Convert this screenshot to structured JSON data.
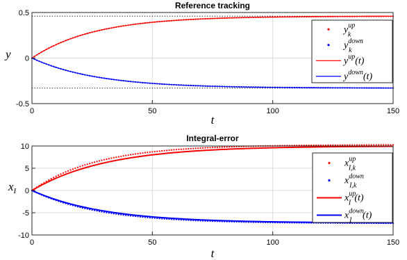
{
  "chart_data": [
    {
      "type": "line",
      "title": "Reference tracking",
      "xlabel": "t",
      "ylabel": "y",
      "xlim": [
        0,
        150
      ],
      "ylim": [
        -0.5,
        0.5
      ],
      "xticks": [
        0,
        50,
        100,
        150
      ],
      "yticks": [
        -0.5,
        0,
        0.5
      ],
      "ytick_labels": [
        "-0.5",
        "0",
        "0.5"
      ],
      "grid": true,
      "legend_position": "top-right",
      "references": [
        {
          "value": 0.46,
          "style": "dotted",
          "color": "#000000"
        },
        {
          "value": -0.33,
          "style": "dotted",
          "color": "#000000"
        }
      ],
      "series": [
        {
          "label": "y_k^{up}",
          "label_base": "y",
          "label_sup": "up",
          "label_sub": "k",
          "label_paren": "",
          "style": "dots",
          "color": "#ff0000",
          "x_range": [
            0,
            150,
            1
          ],
          "final": 0.46,
          "tau": 26,
          "gain": 1.0
        },
        {
          "label": "y_k^{down}",
          "label_base": "y",
          "label_sup": "down",
          "label_sub": "k",
          "label_paren": "",
          "style": "dots",
          "color": "#0000ff",
          "x_range": [
            0,
            150,
            1
          ],
          "final": -0.33,
          "tau": 27,
          "gain": 1.0
        },
        {
          "label": "y^{up}(t)",
          "label_base": "y",
          "label_sup": "up",
          "label_sub": "",
          "label_paren": "(t)",
          "style": "line",
          "color": "#ff0000",
          "x_range": [
            0,
            150,
            1
          ],
          "final": 0.46,
          "tau": 26,
          "gain": 1.0
        },
        {
          "label": "y^{down}(t)",
          "label_base": "y",
          "label_sup": "down",
          "label_sub": "",
          "label_paren": "(t)",
          "style": "line",
          "color": "#0000ff",
          "x_range": [
            0,
            150,
            1
          ],
          "final": -0.33,
          "tau": 27,
          "gain": 1.0
        }
      ]
    },
    {
      "type": "line",
      "title": "Integral-error",
      "xlabel": "t",
      "ylabel": "x_I",
      "xlim": [
        0,
        150
      ],
      "ylim": [
        -10,
        10
      ],
      "xticks": [
        0,
        50,
        100,
        150
      ],
      "yticks": [
        -10,
        -5,
        0,
        5,
        10
      ],
      "ytick_labels": [
        "-10",
        "-5",
        "0",
        "5",
        "10"
      ],
      "grid": true,
      "legend_position": "top-right",
      "references": [],
      "series": [
        {
          "label": "x_{I,k}^{up}",
          "label_base": "x",
          "label_sup": "up",
          "label_sub": "I,k",
          "label_paren": "",
          "style": "dots",
          "color": "#ff0000",
          "x_range": [
            0,
            150,
            1
          ],
          "final": 10.3,
          "tau": 27,
          "gain": 1.0
        },
        {
          "label": "x_{I,k}^{down}",
          "label_base": "x",
          "label_sup": "down",
          "label_sub": "I,k",
          "label_paren": "",
          "style": "dots",
          "color": "#0000ff",
          "x_range": [
            0,
            150,
            1
          ],
          "final": -7.4,
          "tau": 28,
          "gain": 1.0
        },
        {
          "label": "x_I^{up}(t)",
          "label_base": "x",
          "label_sup": "up",
          "label_sub": "I",
          "label_paren": "(t)",
          "style": "line",
          "color": "#ff0000",
          "x_range": [
            0,
            150,
            1
          ],
          "final": 10.0,
          "tau": 31,
          "gain": 1.0
        },
        {
          "label": "x_I^{down}(t)",
          "label_base": "x",
          "label_sup": "down",
          "label_sub": "I",
          "label_paren": "(t)",
          "style": "line",
          "color": "#0000ff",
          "x_range": [
            0,
            150,
            1
          ],
          "final": -7.3,
          "tau": 30,
          "gain": 1.0
        }
      ]
    }
  ]
}
